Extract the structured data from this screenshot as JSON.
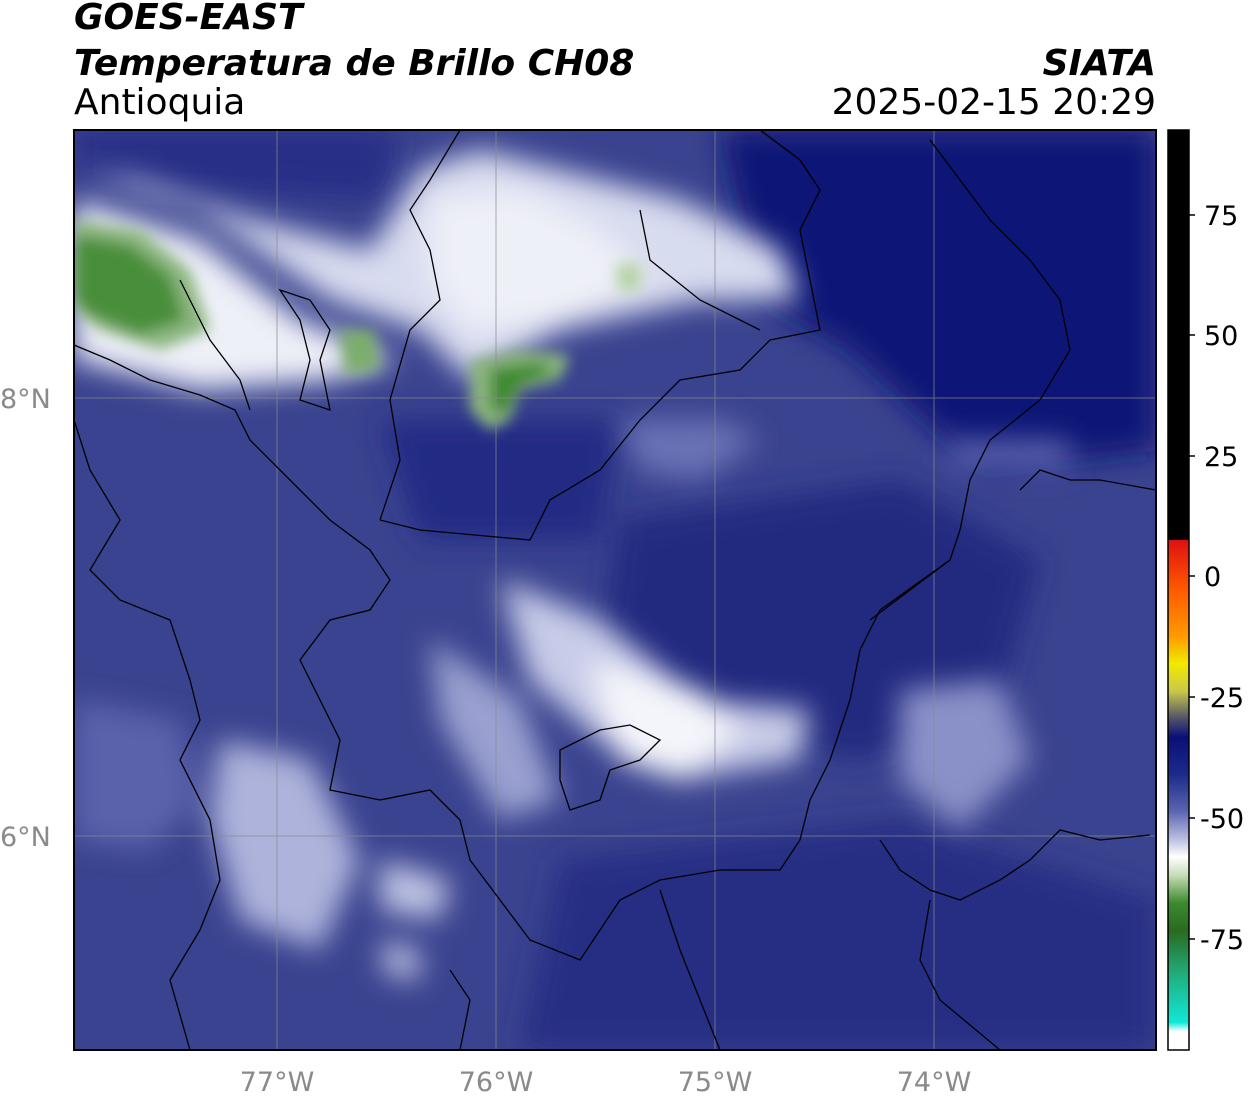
{
  "header": {
    "satellite": "GOES-EAST",
    "product": "Temperatura de Brillo CH08",
    "region": "Antioquia",
    "organization": "SIATA",
    "timestamp": "2025-02-15 20:29"
  },
  "map": {
    "lon_labels": [
      "77°W",
      "76°W",
      "75°W",
      "74°W"
    ],
    "lat_labels": [
      "8°N",
      "6°N"
    ],
    "colors": {
      "background_cold": "#22237e",
      "medium": "#3a438f",
      "white_cloud": "#ffffff",
      "green_cloud": "#3c8b2e",
      "border": "#000000",
      "grid": "#8a8a8a"
    }
  },
  "colorbar": {
    "tick_labels": [
      "75",
      "50",
      "25",
      "0",
      "-25",
      "-50",
      "-75"
    ],
    "colors": {
      "warm": "#000000",
      "red": "#e01010",
      "orange": "#ff9a00",
      "yellow": "#f2ea00",
      "dark_navy": "#0a0f78",
      "white": "#ffffff",
      "green": "#3c8b2e",
      "cyan": "#10e8d8"
    }
  }
}
